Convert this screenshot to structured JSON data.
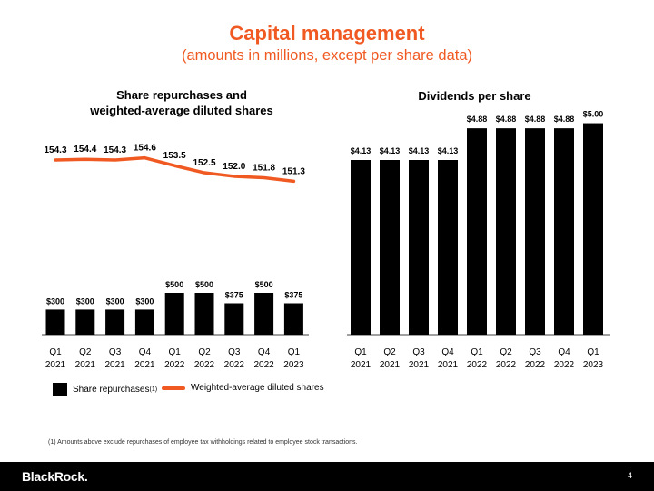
{
  "page": {
    "title": "Capital management",
    "subtitle": "(amounts in millions, except per share data)",
    "footnote": "(1) Amounts above exclude repurchases of employee tax withholdings related to employee stock transactions.",
    "logo": "BlackRock.",
    "page_number": "4"
  },
  "colors": {
    "accent": "#f05a22",
    "bar": "#000000"
  },
  "legend": {
    "bars_label": "Share repurchases",
    "bars_superscript": "(1)",
    "line_label": "Weighted-average diluted shares"
  },
  "chart_data": [
    {
      "type": "bar",
      "title": "Share repurchases and weighted-average diluted shares",
      "title_lines": [
        "Share repurchases and",
        "weighted-average diluted shares"
      ],
      "categories": [
        [
          "Q1",
          "2021"
        ],
        [
          "Q2",
          "2021"
        ],
        [
          "Q3",
          "2021"
        ],
        [
          "Q4",
          "2021"
        ],
        [
          "Q1",
          "2022"
        ],
        [
          "Q2",
          "2022"
        ],
        [
          "Q3",
          "2022"
        ],
        [
          "Q4",
          "2022"
        ],
        [
          "Q1",
          "2023"
        ]
      ],
      "series": [
        {
          "name": "Share repurchases",
          "kind": "bar",
          "values": [
            300,
            300,
            300,
            300,
            500,
            500,
            375,
            500,
            375
          ],
          "labels": [
            "$300",
            "$300",
            "$300",
            "$300",
            "$500",
            "$500",
            "$375",
            "$500",
            "$375"
          ]
        },
        {
          "name": "Weighted-average diluted shares",
          "kind": "line",
          "values": [
            154.3,
            154.4,
            154.3,
            154.6,
            153.5,
            152.5,
            152.0,
            151.8,
            151.3
          ],
          "labels": [
            "154.3",
            "154.4",
            "154.3",
            "154.6",
            "153.5",
            "152.5",
            "152.0",
            "151.8",
            "151.3"
          ]
        }
      ],
      "legend": "bottom"
    },
    {
      "type": "bar",
      "title": "Dividends per share",
      "categories": [
        [
          "Q1",
          "2021"
        ],
        [
          "Q2",
          "2021"
        ],
        [
          "Q3",
          "2021"
        ],
        [
          "Q4",
          "2021"
        ],
        [
          "Q1",
          "2022"
        ],
        [
          "Q2",
          "2022"
        ],
        [
          "Q3",
          "2022"
        ],
        [
          "Q4",
          "2022"
        ],
        [
          "Q1",
          "2023"
        ]
      ],
      "values": [
        4.13,
        4.13,
        4.13,
        4.13,
        4.88,
        4.88,
        4.88,
        4.88,
        5.0
      ],
      "labels": [
        "$4.13",
        "$4.13",
        "$4.13",
        "$4.13",
        "$4.88",
        "$4.88",
        "$4.88",
        "$4.88",
        "$5.00"
      ]
    }
  ]
}
